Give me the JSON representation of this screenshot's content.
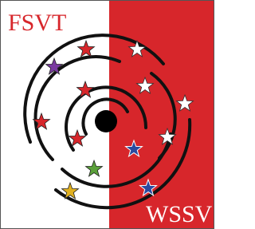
{
  "logo": {
    "left_text": "FSVT",
    "right_text": "WSSV"
  }
}
